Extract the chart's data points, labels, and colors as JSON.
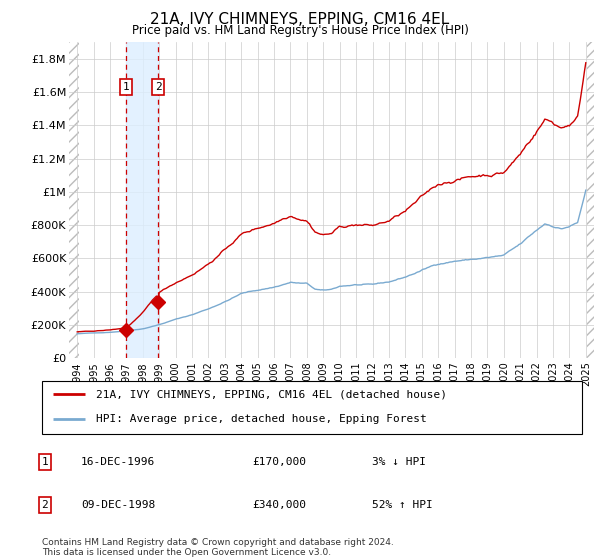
{
  "title": "21A, IVY CHIMNEYS, EPPING, CM16 4EL",
  "subtitle": "Price paid vs. HM Land Registry's House Price Index (HPI)",
  "legend_line1": "21A, IVY CHIMNEYS, EPPING, CM16 4EL (detached house)",
  "legend_line2": "HPI: Average price, detached house, Epping Forest",
  "table_rows": [
    {
      "num": "1",
      "date": "16-DEC-1996",
      "price": "£170,000",
      "change": "3% ↓ HPI"
    },
    {
      "num": "2",
      "date": "09-DEC-1998",
      "price": "£340,000",
      "change": "52% ↑ HPI"
    }
  ],
  "footer": "Contains HM Land Registry data © Crown copyright and database right 2024.\nThis data is licensed under the Open Government Licence v3.0.",
  "sale1_x": 1996.96,
  "sale1_y": 170000,
  "sale2_x": 1998.93,
  "sale2_y": 340000,
  "hpi_color": "#7aaad0",
  "price_color": "#cc0000",
  "sale_marker_color": "#cc0000",
  "shaded_region_color": "#ddeeff",
  "ylim_max": 1900000,
  "ylim_min": 0,
  "xlim_min": 1993.5,
  "xlim_max": 2025.5,
  "yticks": [
    0,
    200000,
    400000,
    600000,
    800000,
    1000000,
    1200000,
    1400000,
    1600000,
    1800000
  ],
  "ytick_labels": [
    "£0",
    "£200K",
    "£400K",
    "£600K",
    "£800K",
    "£1M",
    "£1.2M",
    "£1.4M",
    "£1.6M",
    "£1.8M"
  ],
  "xtick_years": [
    1994,
    1995,
    1996,
    1997,
    1998,
    1999,
    2000,
    2001,
    2002,
    2003,
    2004,
    2005,
    2006,
    2007,
    2008,
    2009,
    2010,
    2011,
    2012,
    2013,
    2014,
    2015,
    2016,
    2017,
    2018,
    2019,
    2020,
    2021,
    2022,
    2023,
    2024,
    2025
  ]
}
